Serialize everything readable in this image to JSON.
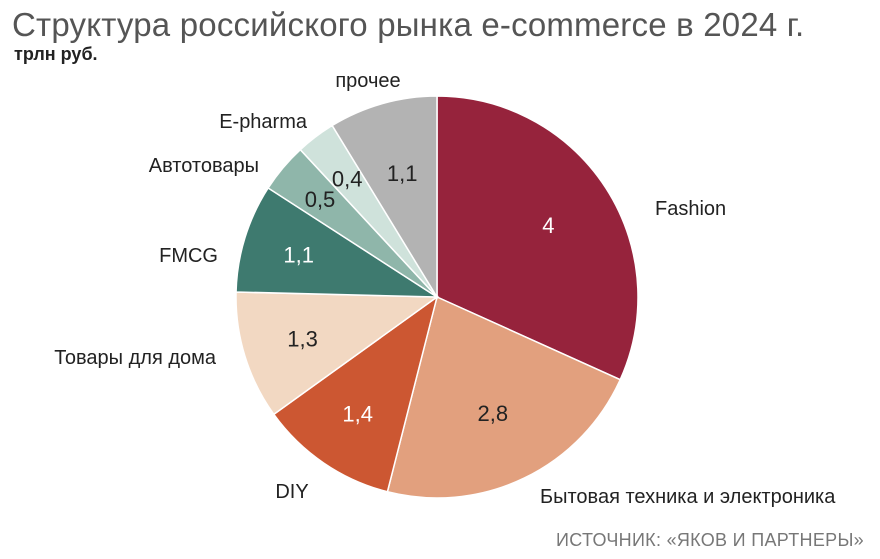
{
  "header": {
    "title": "Структура российского рынка e-commerce в 2024 г.",
    "subtitle": "трлн руб."
  },
  "footer": {
    "source": "ИСТОЧНИК: «ЯКОВ И ПАРТНЕРЫ»"
  },
  "chart_data": {
    "type": "pie",
    "title": "Структура российского рынка e-commerce в 2024 г.",
    "unit": "трлн руб.",
    "start": "12 o'clock",
    "direction": "clockwise",
    "slices": [
      {
        "label": "Fashion",
        "value": 4,
        "value_label": "4",
        "color": "#96233c",
        "text_color": "#ffffff"
      },
      {
        "label": "Бытовая техника и электроника",
        "value": 2.8,
        "value_label": "2,8",
        "color": "#e2a07e",
        "text_color": "#222222"
      },
      {
        "label": "DIY",
        "value": 1.4,
        "value_label": "1,4",
        "color": "#cc5732",
        "text_color": "#ffffff"
      },
      {
        "label": "Товары для дома",
        "value": 1.3,
        "value_label": "1,3",
        "color": "#f2d8c2",
        "text_color": "#222222"
      },
      {
        "label": "FMCG",
        "value": 1.1,
        "value_label": "1,1",
        "color": "#3e7a6f",
        "text_color": "#ffffff"
      },
      {
        "label": "Автотовары",
        "value": 0.5,
        "value_label": "0,5",
        "color": "#8fb6aa",
        "text_color": "#222222"
      },
      {
        "label": "E-pharma",
        "value": 0.4,
        "value_label": "0,4",
        "color": "#cfe2db",
        "text_color": "#222222"
      },
      {
        "label": "прочее",
        "value": 1.1,
        "value_label": "1,1",
        "color": "#b3b3b3",
        "text_color": "#222222"
      }
    ]
  }
}
